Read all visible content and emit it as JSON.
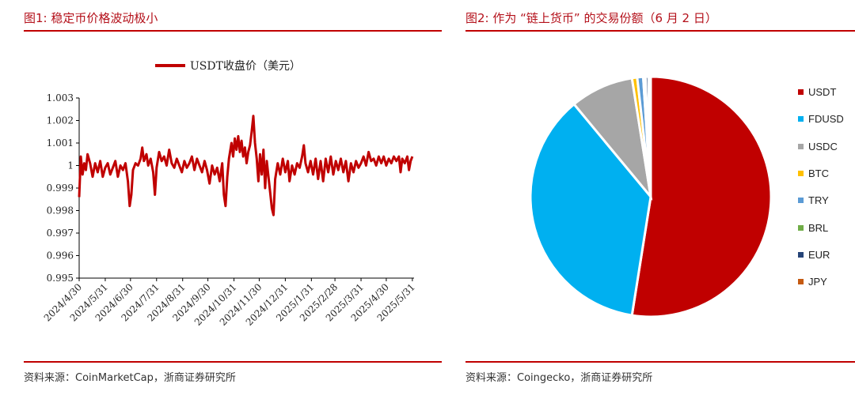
{
  "left_panel": {
    "title": "图1:   稳定币价格波动极小",
    "source": "资料来源：CoinMarketCap，浙商证券研究所"
  },
  "right_panel": {
    "title": "图2:   作为 “链上货币” 的交易份额（6 月 2 日）",
    "source": "资料来源：Coingecko，浙商证券研究所"
  },
  "chart_data": [
    {
      "type": "line",
      "legend": "USDT收盘价（美元）",
      "series_color": "#c00000",
      "y_ticks": [
        "1.003",
        "1.002",
        "1.001",
        "1",
        "0.999",
        "0.998",
        "0.997",
        "0.996",
        "0.995"
      ],
      "ylim": [
        0.995,
        1.003
      ],
      "x_ticks": [
        "2024/4/30",
        "2024/5/31",
        "2024/6/30",
        "2024/7/31",
        "2024/8/31",
        "2024/9/30",
        "2024/10/31",
        "2024/11/30",
        "2024/12/31",
        "2025/1/31",
        "2025/2/28",
        "2025/3/31",
        "2025/4/30",
        "2025/5/31"
      ],
      "x_index": [
        0,
        31,
        61,
        92,
        123,
        153,
        184,
        214,
        245,
        276,
        304,
        335,
        365,
        396
      ],
      "total_days": 398,
      "points": [
        [
          0,
          0.9986
        ],
        [
          2,
          1.0004
        ],
        [
          4,
          0.9996
        ],
        [
          6,
          1.0001
        ],
        [
          8,
          0.9998
        ],
        [
          10,
          1.0005
        ],
        [
          13,
          1.0001
        ],
        [
          16,
          0.9995
        ],
        [
          19,
          1.0001
        ],
        [
          22,
          0.9997
        ],
        [
          25,
          1.0002
        ],
        [
          28,
          0.9995
        ],
        [
          31,
          0.9999
        ],
        [
          34,
          1.0001
        ],
        [
          37,
          0.9996
        ],
        [
          40,
          0.9999
        ],
        [
          43,
          1.0002
        ],
        [
          46,
          0.9995
        ],
        [
          49,
          1.0
        ],
        [
          52,
          0.9998
        ],
        [
          55,
          1.0001
        ],
        [
          58,
          0.9993
        ],
        [
          60,
          0.9982
        ],
        [
          62,
          0.9987
        ],
        [
          64,
          0.9998
        ],
        [
          67,
          1.0001
        ],
        [
          70,
          1.0
        ],
        [
          73,
          1.0003
        ],
        [
          75,
          1.0008
        ],
        [
          77,
          1.0002
        ],
        [
          80,
          1.0005
        ],
        [
          82,
          1.0
        ],
        [
          85,
          1.0003
        ],
        [
          88,
          0.9997
        ],
        [
          90,
          0.9987
        ],
        [
          92,
          0.9999
        ],
        [
          95,
          1.0006
        ],
        [
          98,
          1.0002
        ],
        [
          101,
          1.0004
        ],
        [
          104,
          1.0
        ],
        [
          107,
          1.0007
        ],
        [
          110,
          1.0001
        ],
        [
          113,
          0.9999
        ],
        [
          116,
          1.0003
        ],
        [
          119,
          1.0
        ],
        [
          122,
          0.9997
        ],
        [
          125,
          1.0002
        ],
        [
          128,
          0.9999
        ],
        [
          131,
          1.0001
        ],
        [
          134,
          1.0004
        ],
        [
          137,
          0.9998
        ],
        [
          140,
          1.0003
        ],
        [
          143,
          1.0
        ],
        [
          146,
          0.9997
        ],
        [
          149,
          1.0002
        ],
        [
          152,
          0.9998
        ],
        [
          155,
          0.9992
        ],
        [
          158,
          1.0
        ],
        [
          161,
          0.9996
        ],
        [
          164,
          0.9999
        ],
        [
          167,
          0.9993
        ],
        [
          170,
          1.0001
        ],
        [
          172,
          0.9987
        ],
        [
          174,
          0.9982
        ],
        [
          176,
          0.9995
        ],
        [
          178,
          1.0003
        ],
        [
          181,
          1.001
        ],
        [
          183,
          1.0004
        ],
        [
          185,
          1.0012
        ],
        [
          187,
          1.0007
        ],
        [
          189,
          1.0013
        ],
        [
          191,
          1.0006
        ],
        [
          193,
          1.0011
        ],
        [
          195,
          1.0004
        ],
        [
          197,
          1.0008
        ],
        [
          199,
          1.0001
        ],
        [
          201,
          1.0006
        ],
        [
          203,
          1.0009
        ],
        [
          205,
          1.0015
        ],
        [
          207,
          1.0022
        ],
        [
          209,
          1.001
        ],
        [
          211,
          1.0003
        ],
        [
          213,
          0.9993
        ],
        [
          215,
          1.0005
        ],
        [
          217,
          0.9996
        ],
        [
          219,
          1.0007
        ],
        [
          221,
          0.999
        ],
        [
          223,
          1.0002
        ],
        [
          225,
          0.9995
        ],
        [
          227,
          0.9988
        ],
        [
          229,
          0.9981
        ],
        [
          231,
          0.9978
        ],
        [
          233,
          0.9994
        ],
        [
          236,
          1.0001
        ],
        [
          239,
          0.9996
        ],
        [
          242,
          1.0003
        ],
        [
          245,
          0.9997
        ],
        [
          248,
          1.0002
        ],
        [
          250,
          0.9993
        ],
        [
          253,
          1.0
        ],
        [
          256,
          0.9996
        ],
        [
          259,
          1.0001
        ],
        [
          262,
          0.9999
        ],
        [
          265,
          1.0004
        ],
        [
          267,
          1.0009
        ],
        [
          269,
          1.0001
        ],
        [
          272,
          0.9997
        ],
        [
          275,
          1.0002
        ],
        [
          278,
          0.9996
        ],
        [
          281,
          1.0003
        ],
        [
          284,
          0.9994
        ],
        [
          287,
          1.0002
        ],
        [
          290,
          0.9993
        ],
        [
          293,
          1.0003
        ],
        [
          296,
          0.9997
        ],
        [
          299,
          1.0004
        ],
        [
          302,
          0.9996
        ],
        [
          305,
          1.0002
        ],
        [
          308,
          0.9998
        ],
        [
          311,
          1.0003
        ],
        [
          314,
          0.9997
        ],
        [
          317,
          1.0002
        ],
        [
          320,
          0.9993
        ],
        [
          323,
          1.0001
        ],
        [
          326,
          0.9997
        ],
        [
          329,
          1.0002
        ],
        [
          332,
          0.9999
        ],
        [
          335,
          1.0001
        ],
        [
          338,
          1.0004
        ],
        [
          341,
          1.0
        ],
        [
          344,
          1.0006
        ],
        [
          347,
          1.0002
        ],
        [
          350,
          1.0003
        ],
        [
          353,
          1.0
        ],
        [
          356,
          1.0004
        ],
        [
          359,
          1.0001
        ],
        [
          362,
          1.0004
        ],
        [
          365,
          1.0
        ],
        [
          368,
          1.0003
        ],
        [
          371,
          1.0001
        ],
        [
          374,
          1.0004
        ],
        [
          377,
          1.0002
        ],
        [
          380,
          1.0004
        ],
        [
          382,
          0.9997
        ],
        [
          384,
          1.0003
        ],
        [
          387,
          1.0001
        ],
        [
          390,
          1.0004
        ],
        [
          392,
          0.9998
        ],
        [
          394,
          1.0002
        ],
        [
          396,
          1.0004
        ]
      ]
    },
    {
      "type": "pie",
      "slices": [
        {
          "name": "USDT",
          "value": 52.5,
          "color": "#c00000"
        },
        {
          "name": "FDUSD",
          "value": 36.5,
          "color": "#00b0f0"
        },
        {
          "name": "USDC",
          "value": 8.5,
          "color": "#a6a6a6"
        },
        {
          "name": "BTC",
          "value": 0.7,
          "color": "#ffc000"
        },
        {
          "name": "TRY",
          "value": 0.8,
          "color": "#5b9bd5"
        },
        {
          "name": "BRL",
          "value": 0.3,
          "color": "#70ad47"
        },
        {
          "name": "EUR",
          "value": 0.4,
          "color": "#264478"
        },
        {
          "name": "JPY",
          "value": 0.3,
          "color": "#c55a11"
        }
      ]
    }
  ]
}
